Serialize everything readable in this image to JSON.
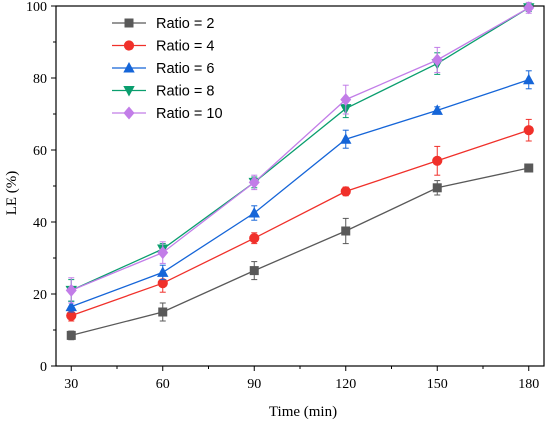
{
  "chart_data": {
    "type": "line",
    "xlabel": "Time (min)",
    "ylabel": "LE (%)",
    "x": [
      30,
      60,
      90,
      120,
      150,
      180
    ],
    "xticks": [
      30,
      60,
      90,
      120,
      150,
      180
    ],
    "yticks": [
      0,
      20,
      40,
      60,
      80,
      100
    ],
    "xlim": [
      25,
      185
    ],
    "ylim": [
      0,
      100
    ],
    "grid": false,
    "legend_position": "top-left",
    "series": [
      {
        "name": "Ratio = 2",
        "color": "#595959",
        "marker": "square",
        "values": [
          8.5,
          15,
          26.5,
          37.5,
          49.5,
          55
        ],
        "errors": [
          1.2,
          2.5,
          2.5,
          3.5,
          2,
          1
        ]
      },
      {
        "name": "Ratio = 4",
        "color": "#f0302a",
        "marker": "circle",
        "values": [
          14,
          23,
          35.5,
          48.5,
          57,
          65.5
        ],
        "errors": [
          1.5,
          2.5,
          1.5,
          1.2,
          4,
          3
        ]
      },
      {
        "name": "Ratio = 6",
        "color": "#1565d8",
        "marker": "triangle-up",
        "values": [
          16.5,
          26,
          42.5,
          63,
          71,
          79.5
        ],
        "errors": [
          1.5,
          2,
          2,
          2.5,
          1,
          2.5
        ]
      },
      {
        "name": "Ratio = 8",
        "color": "#0a9e6e",
        "marker": "triangle-down",
        "values": [
          21,
          32.5,
          51,
          71.5,
          84,
          99.5
        ],
        "errors": [
          3,
          1.5,
          1.5,
          2.5,
          3,
          1
        ]
      },
      {
        "name": "Ratio = 10",
        "color": "#c27de8",
        "marker": "diamond",
        "values": [
          21,
          31.5,
          51,
          74,
          85,
          99.5
        ],
        "errors": [
          3.5,
          3,
          2,
          4,
          3.5,
          1.5
        ]
      }
    ]
  }
}
